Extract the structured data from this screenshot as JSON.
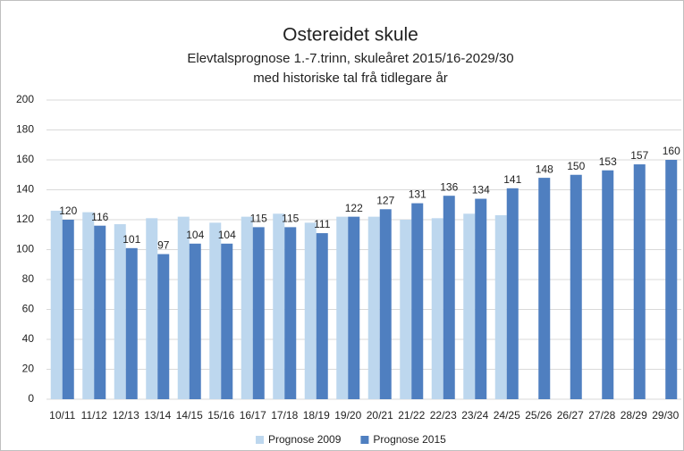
{
  "chart_data": {
    "type": "bar",
    "title": "Ostereidet skule",
    "subtitle": [
      "Elevtalsprognose 1.-7.trinn, skuleåret 2015/16-2029/30",
      "med historiske tal frå tidlegare år"
    ],
    "categories": [
      "10/11",
      "11/12",
      "12/13",
      "13/14",
      "14/15",
      "15/16",
      "16/17",
      "17/18",
      "18/19",
      "19/20",
      "20/21",
      "21/22",
      "22/23",
      "23/24",
      "24/25",
      "25/26",
      "26/27",
      "27/28",
      "28/29",
      "29/30"
    ],
    "series": [
      {
        "name": "Prognose 2009",
        "color": "#bdd7ee",
        "data_labels": false,
        "values": [
          126,
          125,
          117,
          121,
          122,
          118,
          122,
          124,
          118,
          122,
          122,
          120,
          121,
          124,
          123,
          null,
          null,
          null,
          null,
          null
        ]
      },
      {
        "name": "Prognose 2015",
        "color": "#4f7fc0",
        "data_labels": true,
        "values": [
          120,
          116,
          101,
          97,
          104,
          104,
          115,
          115,
          111,
          122,
          127,
          131,
          136,
          134,
          141,
          148,
          150,
          153,
          157,
          160
        ]
      }
    ],
    "ylim": [
      0,
      200
    ],
    "yticks": [
      0,
      20,
      40,
      60,
      80,
      100,
      120,
      140,
      160,
      180,
      200
    ],
    "grid": true,
    "legend": "bottom"
  }
}
